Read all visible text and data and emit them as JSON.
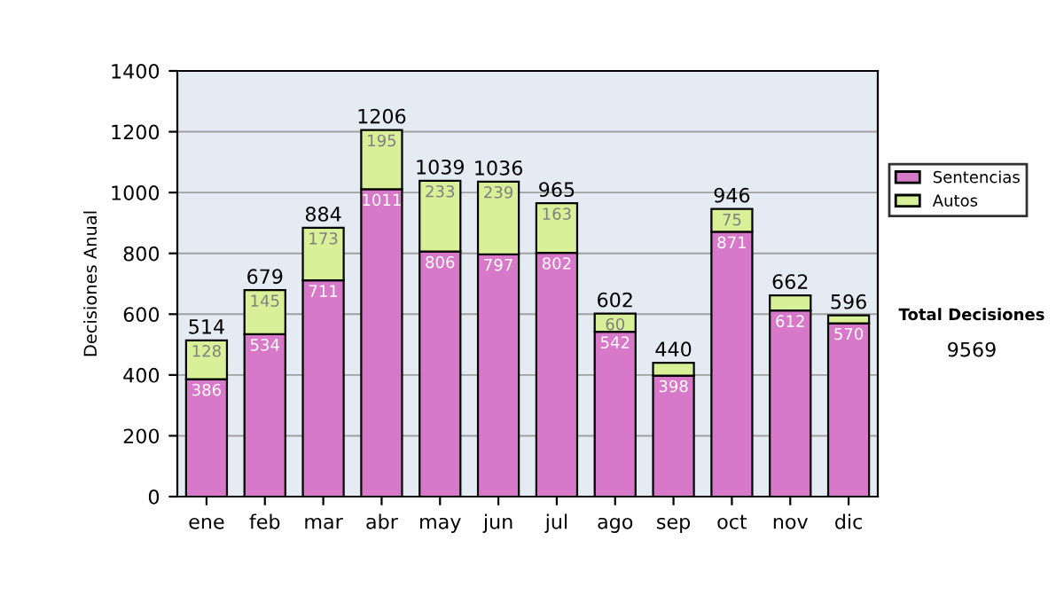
{
  "chart_data": {
    "type": "bar",
    "stacked": true,
    "ylabel": "Decisiones Anual",
    "categories": [
      "ene",
      "feb",
      "mar",
      "abr",
      "may",
      "jun",
      "jul",
      "ago",
      "sep",
      "oct",
      "nov",
      "dic"
    ],
    "series": [
      {
        "name": "Sentencias",
        "color": "#d878c8",
        "values": [
          386,
          534,
          711,
          1011,
          806,
          797,
          802,
          542,
          398,
          871,
          612,
          570
        ],
        "value_labels": [
          "386",
          "534",
          "711",
          "1011",
          "806",
          "797",
          "802",
          "542",
          "398",
          "871",
          "612",
          "570"
        ]
      },
      {
        "name": "Autos",
        "color": "#d8f098",
        "values": [
          128,
          145,
          173,
          195,
          233,
          239,
          163,
          60,
          42,
          75,
          50,
          26
        ],
        "value_labels": [
          "128",
          "145",
          "173",
          "195",
          "233",
          "239",
          "163",
          "60",
          null,
          "75",
          null,
          null
        ]
      }
    ],
    "totals": [
      "514",
      "679",
      "884",
      "1206",
      "1039",
      "1036",
      "965",
      "602",
      "440",
      "946",
      "662",
      "596"
    ],
    "ylim": [
      0,
      1400
    ],
    "yticks": [
      0,
      200,
      400,
      600,
      800,
      1000,
      1200,
      1400
    ],
    "grid": "y",
    "legend": "right",
    "annotations": [
      "Total Decisiones",
      "9569"
    ]
  }
}
